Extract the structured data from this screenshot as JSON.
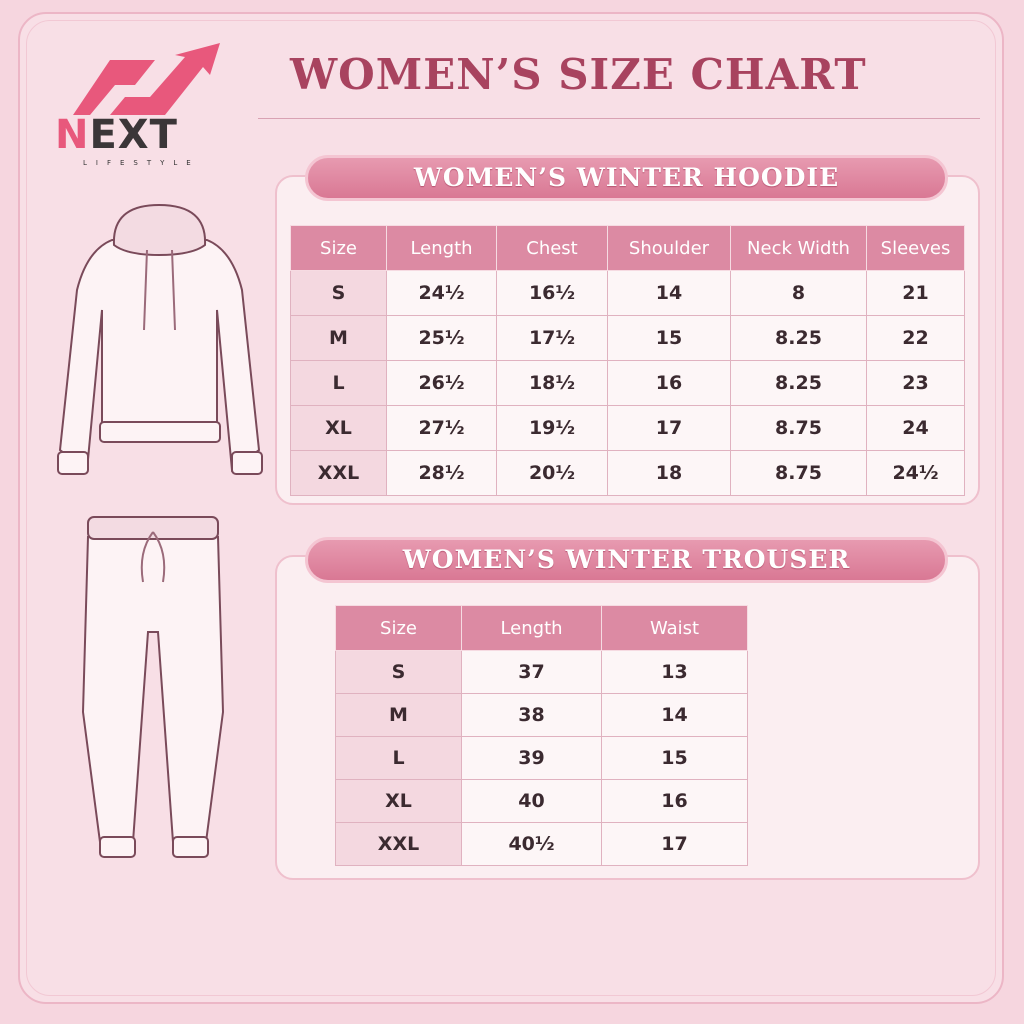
{
  "brand": {
    "name": "NEXT",
    "tagline": "LIFESTYLE"
  },
  "title": "WOMEN’S SIZE CHART",
  "hoodie": {
    "heading": "WOMEN’S WINTER HOODIE",
    "columns": [
      "Size",
      "Length",
      "Chest",
      "Shoulder",
      "Neck Width",
      "Sleeves"
    ],
    "rows": [
      [
        "S",
        "24½",
        "16½",
        "14",
        "8",
        "21"
      ],
      [
        "M",
        "25½",
        "17½",
        "15",
        "8.25",
        "22"
      ],
      [
        "L",
        "26½",
        "18½",
        "16",
        "8.25",
        "23"
      ],
      [
        "XL",
        "27½",
        "19½",
        "17",
        "8.75",
        "24"
      ],
      [
        "XXL",
        "28½",
        "20½",
        "18",
        "8.75",
        "24½"
      ]
    ]
  },
  "trouser": {
    "heading": "WOMEN’S WINTER TROUSER",
    "columns": [
      "Size",
      "Length",
      "Waist"
    ],
    "rows": [
      [
        "S",
        "37",
        "13"
      ],
      [
        "M",
        "38",
        "14"
      ],
      [
        "L",
        "39",
        "15"
      ],
      [
        "XL",
        "40",
        "16"
      ],
      [
        "XXL",
        "40½",
        "17"
      ]
    ]
  },
  "colors": {
    "accent": "#d97894",
    "title": "#a8435f",
    "background": "#f6d6df"
  }
}
